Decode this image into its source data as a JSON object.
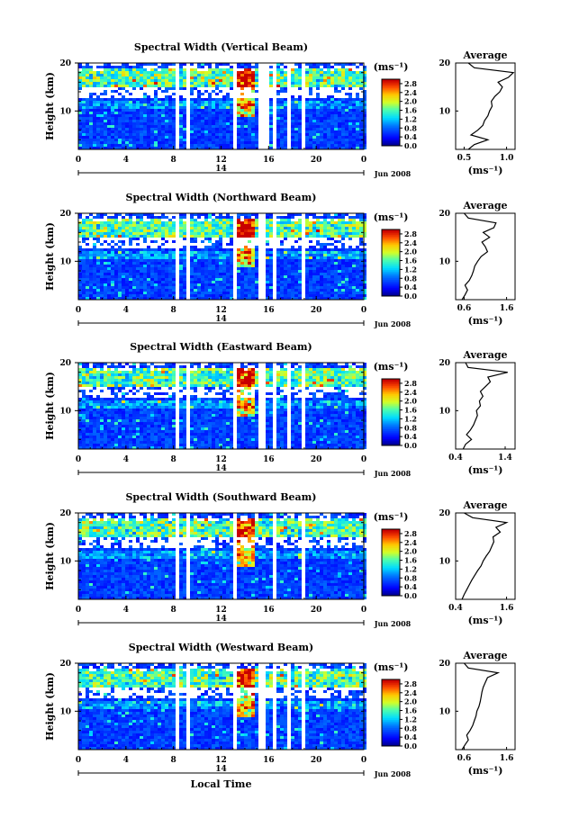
{
  "chart_data": [
    {
      "type": "heatmap",
      "title": "Spectral Width (Vertical Beam)",
      "ylabel": "Height (km)",
      "xlabel": "",
      "ylim": [
        2,
        20
      ],
      "xlim": [
        0,
        24
      ],
      "x_ticks": [
        "0",
        "4",
        "8",
        "12",
        "16",
        "20",
        "0"
      ],
      "y_ticks": [
        "20",
        "10"
      ],
      "date_tick": "14",
      "date_label": "Jun 2008",
      "colorbar": {
        "unit": "(ms⁻¹)",
        "ticks": [
          "2.8",
          "2.4",
          "2.0",
          "1.6",
          "1.2",
          "0.8",
          "0.4",
          "0.0"
        ],
        "range": [
          0,
          3.0
        ]
      },
      "data_gaps_hours": [
        [
          7.9,
          8.2
        ],
        [
          8.8,
          9.1
        ],
        [
          12.9,
          13.2
        ],
        [
          15.0,
          15.8
        ],
        [
          16.3,
          16.6
        ],
        [
          17.3,
          17.7
        ],
        [
          18.7,
          19.0
        ]
      ],
      "profile": {
        "title": "Average",
        "xlabel": "(ms⁻¹)",
        "x_ticks": [
          "0.5",
          "1.0"
        ],
        "xlim": [
          0.4,
          1.1
        ],
        "y_ticks": [
          "20",
          "10"
        ],
        "height_km": [
          2,
          3,
          4,
          5,
          6,
          7,
          8,
          9,
          10,
          11,
          12,
          13,
          14,
          15,
          16,
          17,
          18,
          19,
          20
        ],
        "values": [
          0.55,
          0.62,
          0.78,
          0.58,
          0.66,
          0.72,
          0.74,
          0.78,
          0.8,
          0.83,
          0.82,
          0.86,
          0.92,
          0.95,
          0.9,
          1.02,
          1.08,
          0.62,
          0.55
        ]
      }
    },
    {
      "type": "heatmap",
      "title": "Spectral Width (Northward Beam)",
      "ylabel": "Height (km)",
      "xlabel": "",
      "ylim": [
        2,
        20
      ],
      "xlim": [
        0,
        24
      ],
      "x_ticks": [
        "0",
        "4",
        "8",
        "12",
        "16",
        "20",
        "0"
      ],
      "y_ticks": [
        "20",
        "10"
      ],
      "date_tick": "14",
      "date_label": "Jun 2008",
      "colorbar": {
        "unit": "(ms⁻¹)",
        "ticks": [
          "2.8",
          "2.4",
          "2.0",
          "1.6",
          "1.2",
          "0.8",
          "0.4",
          "0.0"
        ],
        "range": [
          0,
          3.0
        ]
      },
      "data_gaps_hours": [
        [
          7.9,
          8.2
        ],
        [
          8.8,
          9.1
        ],
        [
          12.9,
          13.2
        ],
        [
          15.0,
          15.6
        ],
        [
          16.3,
          16.6
        ],
        [
          18.7,
          19.0
        ]
      ],
      "profile": {
        "title": "Average",
        "xlabel": "(ms⁻¹)",
        "x_ticks": [
          "0.6",
          "1.6"
        ],
        "xlim": [
          0.4,
          1.8
        ],
        "y_ticks": [
          "20",
          "10"
        ],
        "height_km": [
          2,
          3,
          4,
          5,
          6,
          7,
          8,
          9,
          10,
          11,
          12,
          13,
          14,
          15,
          16,
          17,
          18,
          19,
          20
        ],
        "values": [
          0.55,
          0.62,
          0.68,
          0.62,
          0.72,
          0.78,
          0.82,
          0.85,
          0.92,
          1.0,
          1.15,
          1.1,
          1.02,
          1.2,
          1.05,
          1.3,
          1.35,
          0.7,
          0.6
        ]
      }
    },
    {
      "type": "heatmap",
      "title": "Spectral Width (Eastward Beam)",
      "ylabel": "Height (km)",
      "xlabel": "",
      "ylim": [
        2,
        20
      ],
      "xlim": [
        0,
        24
      ],
      "x_ticks": [
        "0",
        "4",
        "8",
        "12",
        "16",
        "20",
        "0"
      ],
      "y_ticks": [
        "20",
        "10"
      ],
      "date_tick": "14",
      "date_label": "Jun 2008",
      "colorbar": {
        "unit": "(ms⁻¹)",
        "ticks": [
          "2.8",
          "2.4",
          "2.0",
          "1.6",
          "1.2",
          "0.8",
          "0.4",
          "0.0"
        ],
        "range": [
          0,
          3.0
        ]
      },
      "data_gaps_hours": [
        [
          7.9,
          8.2
        ],
        [
          8.8,
          9.1
        ],
        [
          12.9,
          13.2
        ],
        [
          15.0,
          15.6
        ],
        [
          16.3,
          16.6
        ],
        [
          17.3,
          17.7
        ],
        [
          18.7,
          19.0
        ]
      ],
      "profile": {
        "title": "Average",
        "xlabel": "(ms⁻¹)",
        "x_ticks": [
          "0.4",
          "1.4"
        ],
        "xlim": [
          0.4,
          1.6
        ],
        "y_ticks": [
          "20",
          "10"
        ],
        "height_km": [
          2,
          3,
          4,
          5,
          6,
          7,
          8,
          9,
          10,
          11,
          12,
          13,
          14,
          15,
          16,
          17,
          18,
          19,
          20
        ],
        "values": [
          0.55,
          0.6,
          0.72,
          0.62,
          0.7,
          0.76,
          0.8,
          0.84,
          0.82,
          0.9,
          0.88,
          0.95,
          0.9,
          1.0,
          1.1,
          1.05,
          1.45,
          0.65,
          0.6
        ]
      }
    },
    {
      "type": "heatmap",
      "title": "Spectral Width (Southward Beam)",
      "ylabel": "Height (km)",
      "xlabel": "",
      "ylim": [
        2,
        20
      ],
      "xlim": [
        0,
        24
      ],
      "x_ticks": [
        "0",
        "4",
        "8",
        "12",
        "16",
        "20",
        "0"
      ],
      "y_ticks": [
        "20",
        "10"
      ],
      "date_tick": "14",
      "date_label": "Jun 2008",
      "colorbar": {
        "unit": "(ms⁻¹)",
        "ticks": [
          "2.8",
          "2.4",
          "2.0",
          "1.6",
          "1.2",
          "0.8",
          "0.4",
          "0.0"
        ],
        "range": [
          0,
          3.0
        ]
      },
      "data_gaps_hours": [
        [
          7.9,
          8.2
        ],
        [
          8.8,
          9.1
        ],
        [
          12.9,
          13.2
        ],
        [
          16.3,
          16.6
        ],
        [
          18.7,
          19.0
        ]
      ],
      "profile": {
        "title": "Average",
        "xlabel": "(ms⁻¹)",
        "x_ticks": [
          "0.4",
          "1.6"
        ],
        "xlim": [
          0.4,
          1.8
        ],
        "y_ticks": [
          "20",
          "10"
        ],
        "height_km": [
          2,
          3,
          4,
          5,
          6,
          7,
          8,
          9,
          10,
          11,
          12,
          13,
          14,
          15,
          16,
          17,
          18,
          19,
          20
        ],
        "values": [
          0.55,
          0.6,
          0.66,
          0.72,
          0.78,
          0.85,
          0.92,
          1.0,
          1.05,
          1.12,
          1.2,
          1.25,
          1.3,
          1.28,
          1.45,
          1.35,
          1.6,
          0.8,
          0.6
        ]
      }
    },
    {
      "type": "heatmap",
      "title": "Spectral Width (Westward Beam)",
      "ylabel": "Height (km)",
      "xlabel": "Local Time",
      "ylim": [
        2,
        20
      ],
      "xlim": [
        0,
        24
      ],
      "x_ticks": [
        "0",
        "4",
        "8",
        "12",
        "16",
        "20",
        "0"
      ],
      "y_ticks": [
        "20",
        "10"
      ],
      "date_tick": "14",
      "date_label": "Jun 2008",
      "colorbar": {
        "unit": "(ms⁻¹)",
        "ticks": [
          "2.8",
          "2.4",
          "2.0",
          "1.6",
          "1.2",
          "0.8",
          "0.4",
          "0.0"
        ],
        "range": [
          0,
          3.0
        ]
      },
      "data_gaps_hours": [
        [
          7.9,
          8.2
        ],
        [
          8.8,
          9.1
        ],
        [
          12.9,
          13.2
        ],
        [
          15.0,
          15.6
        ],
        [
          16.3,
          16.6
        ],
        [
          17.3,
          17.7
        ],
        [
          18.7,
          19.0
        ]
      ],
      "profile": {
        "title": "Average",
        "xlabel": "(ms⁻¹)",
        "x_ticks": [
          "0.6",
          "1.6"
        ],
        "xlim": [
          0.4,
          1.8
        ],
        "y_ticks": [
          "20",
          "10"
        ],
        "height_km": [
          2,
          3,
          4,
          5,
          6,
          7,
          8,
          9,
          10,
          11,
          12,
          13,
          14,
          15,
          16,
          17,
          18,
          19,
          20
        ],
        "values": [
          0.55,
          0.62,
          0.7,
          0.66,
          0.74,
          0.8,
          0.84,
          0.88,
          0.9,
          0.95,
          0.98,
          1.0,
          1.02,
          1.05,
          1.1,
          1.15,
          1.4,
          0.7,
          0.6
        ]
      }
    }
  ]
}
